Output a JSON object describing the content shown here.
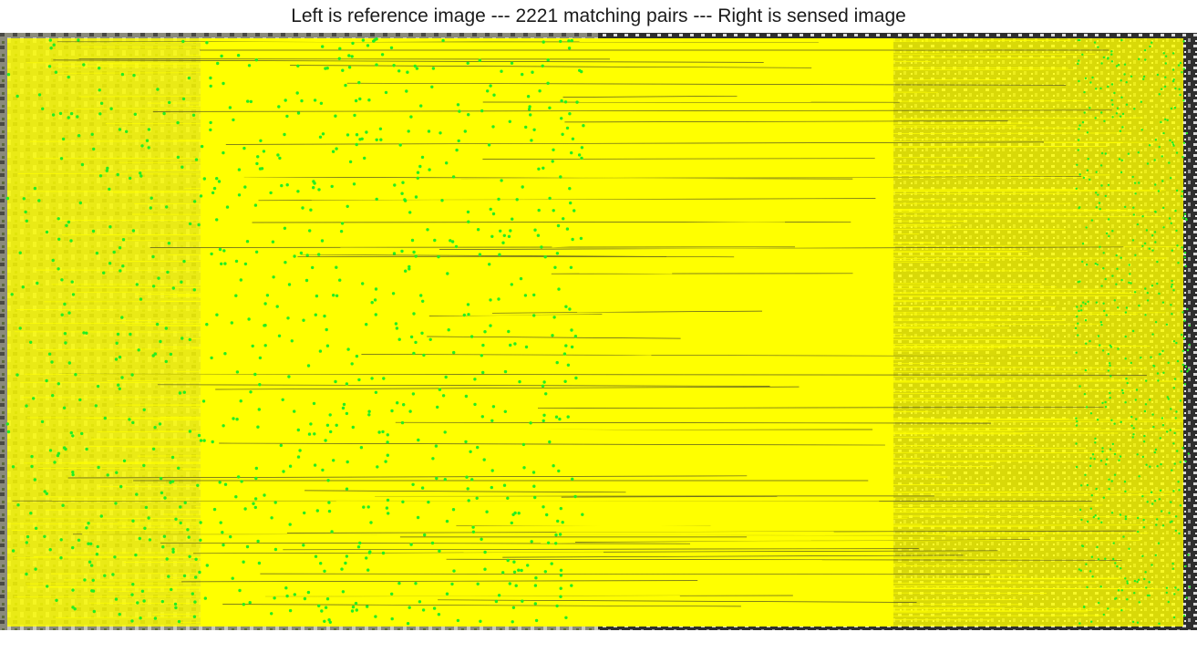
{
  "title": "Left is reference image --- 2221 matching pairs --- Right is sensed image",
  "colors": {
    "match_line": "#ffff00",
    "keypoint": "#22ee22",
    "ground_dark": "#3a3a3a",
    "ground_light": "#cfcfcf",
    "vegetation": "#6f7a4a"
  }
}
